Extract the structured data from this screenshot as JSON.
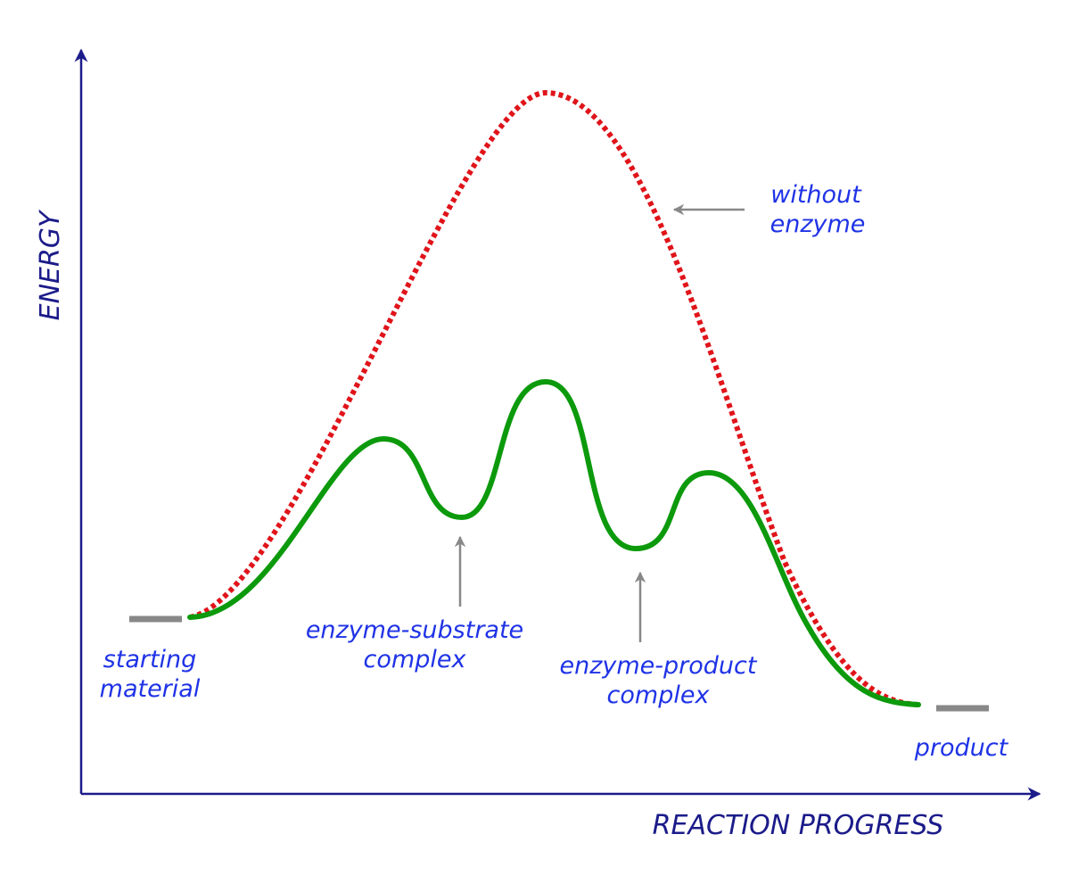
{
  "axes": {
    "y_label": "ENERGY",
    "x_label": "REACTION PROGRESS"
  },
  "labels": {
    "starting_material": [
      "starting",
      "material"
    ],
    "enzyme_substrate": [
      "enzyme-substrate",
      "complex"
    ],
    "enzyme_product": [
      "enzyme-product",
      "complex"
    ],
    "without_enzyme": [
      "without",
      "enzyme"
    ],
    "product": "product"
  },
  "colors": {
    "axis": "#1b1b8a",
    "label_text": "#1f33e6",
    "without_enzyme_curve": "#e0141a",
    "with_enzyme_curve": "#0c9a0c",
    "pointer_arrow": "#888888",
    "level_marker": "#888888"
  },
  "curves": {
    "without_enzyme": {
      "style": "dotted"
    },
    "with_enzyme": {
      "style": "solid"
    }
  }
}
